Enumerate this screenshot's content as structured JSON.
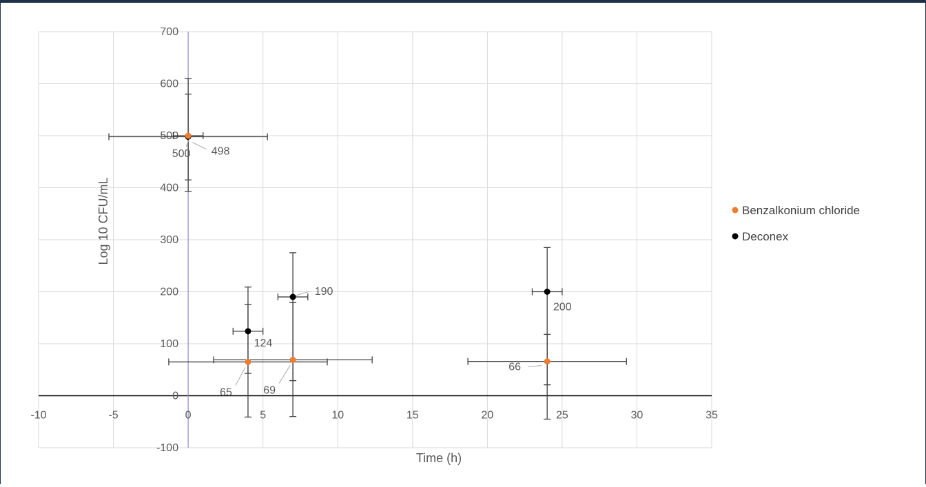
{
  "chart_data": {
    "type": "scatter",
    "title": "",
    "xlabel": "Time (h)",
    "ylabel": "Log 10 CFU/mL",
    "xlim": [
      -10,
      35
    ],
    "ylim": [
      -100,
      700
    ],
    "x_ticks": [
      "-10",
      "-5",
      "0",
      "5",
      "10",
      "15",
      "20",
      "25",
      "30",
      "35"
    ],
    "y_ticks": [
      "-100",
      "0",
      "100",
      "200",
      "300",
      "400",
      "500",
      "600",
      "700"
    ],
    "grid": true,
    "legend_position": "right",
    "series": [
      {
        "name": "Benzalkonium chloride",
        "color": "#ED7D31",
        "points": [
          {
            "x": 0,
            "y": 500,
            "label": "500",
            "x_err": 1,
            "y_err_minus": 85,
            "y_err_plus": 80
          },
          {
            "x": 4,
            "y": 65,
            "label": "65",
            "x_err": 5.3,
            "y_err_minus": 22,
            "y_err_plus": 110
          },
          {
            "x": 7,
            "y": 69,
            "label": "69",
            "x_err": 5.3,
            "y_err_minus": 40,
            "y_err_plus": 110
          },
          {
            "x": 24,
            "y": 66,
            "label": "66",
            "x_err": 5.3,
            "y_err_minus": 45,
            "y_err_plus": 52
          }
        ]
      },
      {
        "name": "Deconex",
        "color": "#000000",
        "points": [
          {
            "x": 0,
            "y": 498,
            "label": "498",
            "x_err": 5.3,
            "y_err_minus": 105,
            "y_err_plus": 112
          },
          {
            "x": 4,
            "y": 124,
            "label": "124",
            "x_err": 1,
            "y_err_minus": 165,
            "y_err_plus": 85
          },
          {
            "x": 7,
            "y": 190,
            "label": "190",
            "x_err": 1,
            "y_err_minus": 230,
            "y_err_plus": 85
          },
          {
            "x": 24,
            "y": 200,
            "label": "200",
            "x_err": 1,
            "y_err_minus": 245,
            "y_err_plus": 85
          }
        ]
      }
    ]
  }
}
